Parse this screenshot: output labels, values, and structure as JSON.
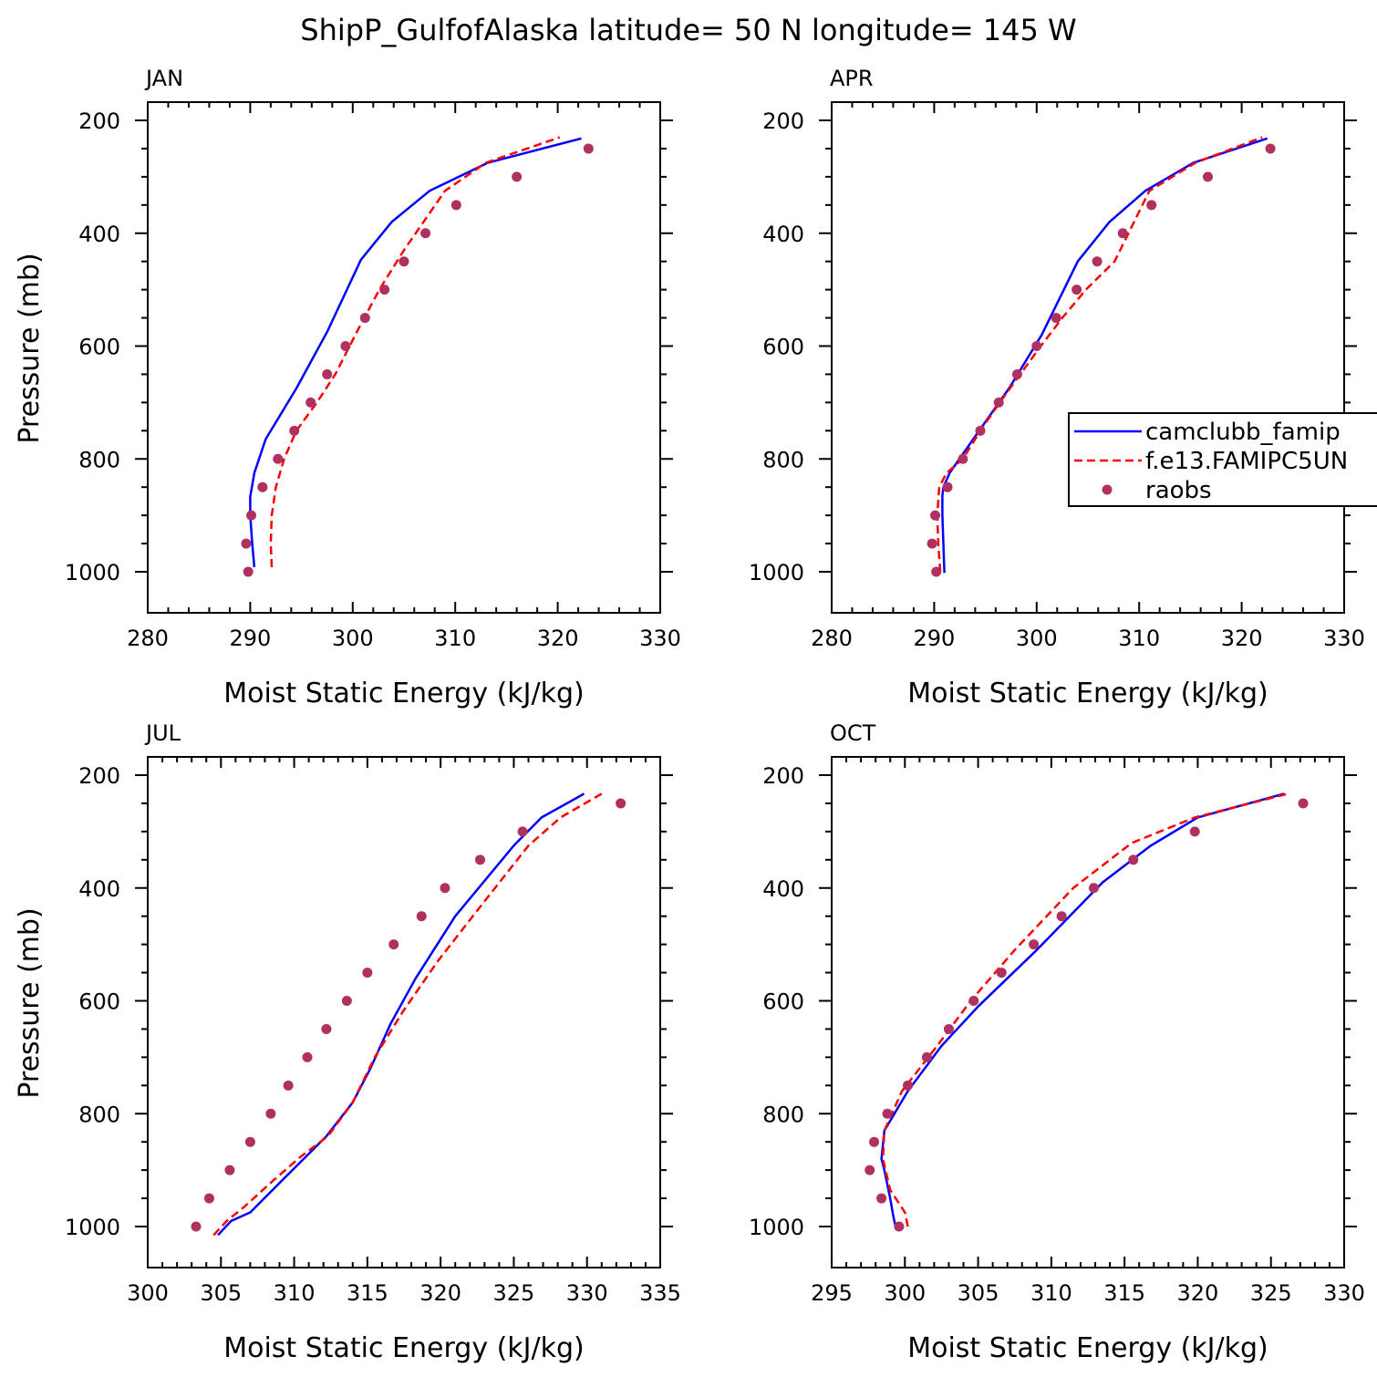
{
  "title": "ShipP_GulfofAlaska  latitude= 50 N longitude= 145 W",
  "series_names": [
    "camclubb_famip",
    "f.e13.FAMIPC5UN",
    "raobs"
  ],
  "colors": {
    "series1": "#0000ff",
    "series2": "#ff0000",
    "series3": "#b03060"
  },
  "chart_data": [
    {
      "type": "line",
      "panel": "JAN",
      "xlabel": "Moist Static Energy (kJ/kg)",
      "ylabel": "Pressure (mb)",
      "xlim": [
        280,
        330
      ],
      "ylim": [
        1000,
        200
      ],
      "xticks": [
        280,
        290,
        300,
        310,
        320,
        330
      ],
      "yticks": [
        200,
        400,
        600,
        800,
        1000
      ],
      "series": [
        {
          "name": "camclubb_famip",
          "style": "solid",
          "color": "#0000ff",
          "x": [
            290.4,
            290.2,
            290.0,
            290.0,
            290.4,
            291.5,
            294.5,
            297.5,
            300.8,
            303.8,
            307.5,
            313.2,
            322.3
          ],
          "y": [
            992,
            950,
            900,
            867,
            825,
            765,
            675,
            575,
            447,
            380,
            325,
            275,
            232
          ]
        },
        {
          "name": "f.e13.FAMIPC5UN",
          "style": "dashed",
          "color": "#ff0000",
          "x": [
            292.1,
            292.0,
            292.1,
            292.5,
            293.3,
            294.5,
            296.5,
            298.3,
            300.4,
            302.6,
            305.0,
            309.0,
            313.0,
            320.2
          ],
          "y": [
            992,
            950,
            900,
            850,
            800,
            750,
            700,
            650,
            575,
            500,
            430,
            325,
            275,
            230
          ]
        },
        {
          "name": "raobs",
          "style": "dots",
          "color": "#b03060",
          "x": [
            289.8,
            289.6,
            290.1,
            291.2,
            292.7,
            294.3,
            295.9,
            297.5,
            299.3,
            301.2,
            303.1,
            305.0,
            307.1,
            310.1,
            316.0,
            323.0
          ],
          "y": [
            1000,
            950,
            900,
            850,
            800,
            750,
            700,
            650,
            600,
            550,
            500,
            450,
            400,
            350,
            300,
            250
          ]
        }
      ]
    },
    {
      "type": "line",
      "panel": "APR",
      "xlabel": "Moist Static Energy (kJ/kg)",
      "ylabel": "",
      "xlim": [
        280,
        330
      ],
      "ylim": [
        1000,
        200
      ],
      "xticks": [
        280,
        290,
        300,
        310,
        320,
        330
      ],
      "yticks": [
        200,
        400,
        600,
        800,
        1000
      ],
      "legend": "right",
      "series": [
        {
          "name": "camclubb_famip",
          "style": "solid",
          "color": "#0000ff",
          "x": [
            291.0,
            290.9,
            290.8,
            290.8,
            290.9,
            291.5,
            294.0,
            297.3,
            300.5,
            304.0,
            307.1,
            310.6,
            315.3,
            322.5
          ],
          "y": [
            1002,
            950,
            900,
            865,
            850,
            825,
            760,
            675,
            580,
            450,
            380,
            325,
            275,
            232
          ]
        },
        {
          "name": "f.e13.FAMIPC5UN",
          "style": "dashed",
          "color": "#ff0000",
          "x": [
            290.6,
            290.4,
            290.3,
            290.5,
            291.2,
            292.8,
            294.5,
            296.4,
            298.4,
            300.4,
            302.5,
            304.8,
            307.6,
            311.0,
            315.5,
            322.0
          ],
          "y": [
            1000,
            950,
            900,
            850,
            825,
            800,
            750,
            700,
            650,
            600,
            550,
            500,
            450,
            325,
            275,
            230
          ]
        },
        {
          "name": "raobs",
          "style": "dots",
          "color": "#b03060",
          "x": [
            290.2,
            289.8,
            290.1,
            291.3,
            292.8,
            294.5,
            296.3,
            298.1,
            300.0,
            301.9,
            303.9,
            305.9,
            308.4,
            311.2,
            316.7,
            322.8
          ],
          "y": [
            1000,
            950,
            900,
            850,
            800,
            750,
            700,
            650,
            600,
            550,
            500,
            450,
            400,
            350,
            300,
            250
          ]
        }
      ]
    },
    {
      "type": "line",
      "panel": "JUL",
      "xlabel": "Moist Static Energy (kJ/kg)",
      "ylabel": "Pressure (mb)",
      "xlim": [
        300,
        335
      ],
      "ylim": [
        1000,
        200
      ],
      "xticks": [
        300,
        305,
        310,
        315,
        320,
        325,
        330,
        335
      ],
      "yticks": [
        200,
        400,
        600,
        800,
        1000
      ],
      "series": [
        {
          "name": "camclubb_famip",
          "style": "solid",
          "color": "#0000ff",
          "x": [
            304.8,
            305.7,
            307.0,
            309.5,
            312.2,
            314.0,
            315.2,
            316.6,
            318.3,
            321.0,
            325.0,
            326.9,
            329.8
          ],
          "y": [
            1015,
            990,
            975,
            910,
            840,
            780,
            720,
            640,
            560,
            450,
            325,
            275,
            233
          ]
        },
        {
          "name": "f.e13.FAMIPC5UN",
          "style": "dashed",
          "color": "#ff0000",
          "x": [
            304.5,
            305.4,
            306.6,
            308.5,
            310.5,
            312.3,
            314.0,
            315.5,
            317.4,
            319.8,
            322.5,
            326.0,
            328.2,
            331.0
          ],
          "y": [
            1015,
            990,
            965,
            920,
            875,
            840,
            780,
            700,
            620,
            530,
            440,
            325,
            275,
            233
          ]
        },
        {
          "name": "raobs",
          "style": "dots",
          "color": "#b03060",
          "x": [
            303.3,
            304.2,
            305.6,
            307.0,
            308.4,
            309.6,
            310.9,
            312.2,
            313.6,
            315.0,
            316.8,
            318.7,
            320.3,
            322.7,
            325.6,
            332.3
          ],
          "y": [
            1000,
            950,
            900,
            850,
            800,
            750,
            700,
            650,
            600,
            550,
            500,
            450,
            400,
            350,
            300,
            250
          ]
        }
      ]
    },
    {
      "type": "line",
      "panel": "OCT",
      "xlabel": "Moist Static Energy (kJ/kg)",
      "ylabel": "",
      "xlim": [
        295,
        330
      ],
      "ylim": [
        1000,
        200
      ],
      "xticks": [
        295,
        300,
        305,
        310,
        315,
        320,
        325,
        330
      ],
      "yticks": [
        200,
        400,
        600,
        800,
        1000
      ],
      "series": [
        {
          "name": "camclubb_famip",
          "style": "solid",
          "color": "#0000ff",
          "x": [
            299.4,
            299.2,
            299.0,
            298.6,
            298.4,
            298.6,
            300.2,
            302.5,
            305.0,
            309.0,
            313.5,
            316.8,
            320.0,
            325.9
          ],
          "y": [
            1005,
            980,
            950,
            900,
            880,
            830,
            760,
            680,
            610,
            510,
            390,
            325,
            275,
            233
          ]
        },
        {
          "name": "f.e13.FAMIPC5UN",
          "style": "dashed",
          "color": "#ff0000",
          "x": [
            300.2,
            300.0,
            299.0,
            298.5,
            298.6,
            299.8,
            302.2,
            304.5,
            307.5,
            311.5,
            315.5,
            319.8,
            326.3
          ],
          "y": [
            1000,
            975,
            935,
            880,
            830,
            760,
            680,
            600,
            510,
            400,
            320,
            275,
            232
          ]
        },
        {
          "name": "raobs",
          "style": "dots",
          "color": "#b03060",
          "x": [
            299.6,
            298.4,
            297.6,
            297.9,
            298.8,
            300.2,
            301.5,
            303.0,
            304.7,
            306.6,
            308.8,
            310.7,
            312.9,
            315.6,
            319.8,
            327.2
          ],
          "y": [
            1000,
            950,
            900,
            850,
            800,
            750,
            700,
            650,
            600,
            550,
            500,
            450,
            400,
            350,
            300,
            250
          ]
        }
      ]
    }
  ]
}
